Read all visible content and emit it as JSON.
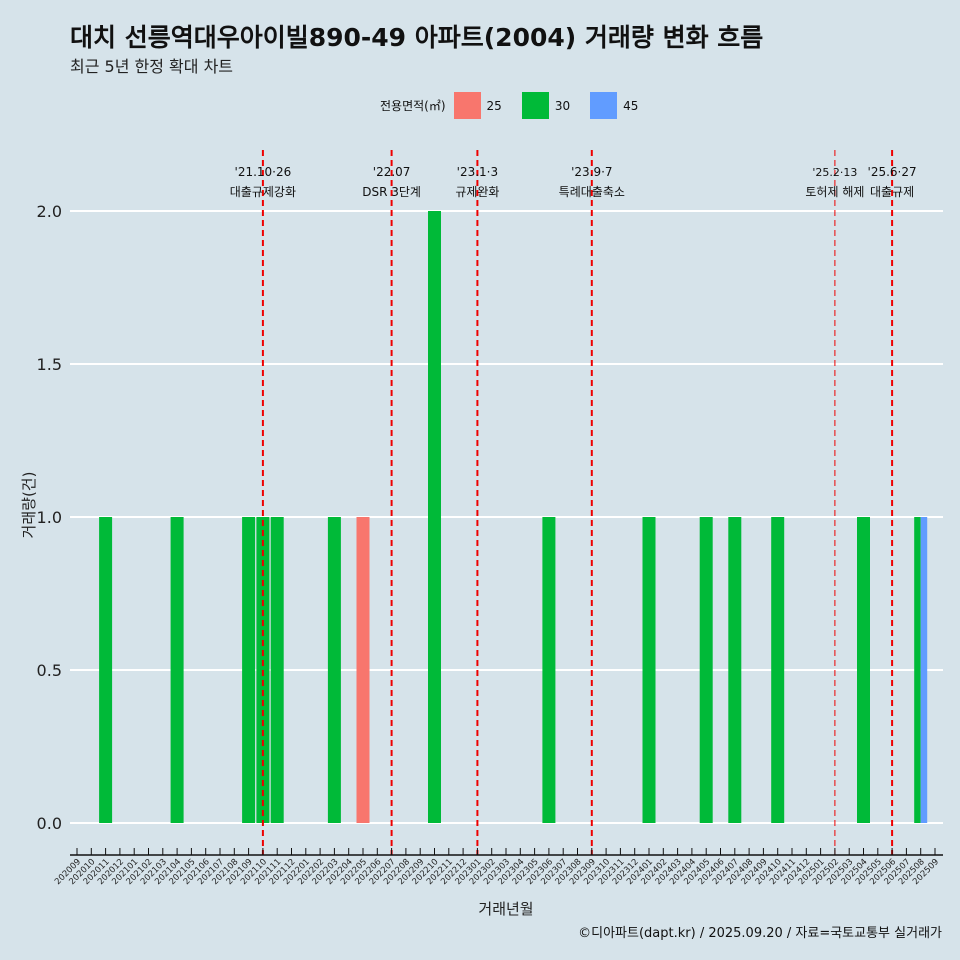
{
  "title": "대치 선릉역대우아이빌890-49 아파트(2004) 거래량 변화 흐름",
  "subtitle": "최근 5년 한정 확대 차트",
  "caption": "©디아파트(dapt.kr) / 2025.09.20 / 자료=국토교통부 실거래가",
  "chart_data": {
    "type": "bar",
    "xlabel": "거래년월",
    "ylabel": "거래량(건)",
    "ylim": [
      -0.15,
      2.2
    ],
    "yticks": [
      "0.0",
      "0.5",
      "1.0",
      "1.5",
      "2.0"
    ],
    "legend": {
      "title": "전용면적(㎡)",
      "position": "top",
      "items": [
        {
          "name": "25",
          "color": "#f8766d"
        },
        {
          "name": "30",
          "color": "#00ba38"
        },
        {
          "name": "45",
          "color": "#619cff"
        }
      ]
    },
    "categories": [
      "202009",
      "202010",
      "202011",
      "202012",
      "202101",
      "202102",
      "202103",
      "202104",
      "202105",
      "202106",
      "202107",
      "202108",
      "202109",
      "202110",
      "202111",
      "202112",
      "202201",
      "202202",
      "202203",
      "202204",
      "202205",
      "202206",
      "202207",
      "202208",
      "202209",
      "202210",
      "202211",
      "202212",
      "202301",
      "202302",
      "202303",
      "202304",
      "202305",
      "202306",
      "202307",
      "202308",
      "202309",
      "202310",
      "202311",
      "202312",
      "202401",
      "202402",
      "202403",
      "202404",
      "202405",
      "202406",
      "202407",
      "202408",
      "202409",
      "202410",
      "202411",
      "202412",
      "202501",
      "202502",
      "202503",
      "202504",
      "202505",
      "202506",
      "202507",
      "202508",
      "202509"
    ],
    "bars": [
      {
        "month": "202011",
        "area": "30",
        "value": 1
      },
      {
        "month": "202104",
        "area": "30",
        "value": 1
      },
      {
        "month": "202109",
        "area": "30",
        "value": 1
      },
      {
        "month": "202110",
        "area": "30",
        "value": 1
      },
      {
        "month": "202111",
        "area": "30",
        "value": 1
      },
      {
        "month": "202203",
        "area": "30",
        "value": 1
      },
      {
        "month": "202205",
        "area": "25",
        "value": 1
      },
      {
        "month": "202210",
        "area": "30",
        "value": 2
      },
      {
        "month": "202306",
        "area": "30",
        "value": 1
      },
      {
        "month": "202401",
        "area": "30",
        "value": 1
      },
      {
        "month": "202405",
        "area": "30",
        "value": 1
      },
      {
        "month": "202407",
        "area": "30",
        "value": 1
      },
      {
        "month": "202410",
        "area": "30",
        "value": 1
      },
      {
        "month": "202504",
        "area": "30",
        "value": 1
      },
      {
        "month": "202508",
        "area": "30",
        "value": 1,
        "dodge": 0
      },
      {
        "month": "202508",
        "area": "45",
        "value": 1,
        "dodge": 1
      }
    ],
    "annotations": [
      {
        "month": "202110",
        "date": "'21.10·26",
        "label": "대출규제강화"
      },
      {
        "month": "202207",
        "date": "'22.07",
        "label": "DSR 3단계"
      },
      {
        "month": "202301",
        "date": "'23.1·3",
        "label": "규제완화"
      },
      {
        "month": "202309",
        "date": "'23.9·7",
        "label": "특례대출축소"
      },
      {
        "month": "202502",
        "date": "'25.2·13",
        "label": "토허제 해제",
        "thin": true
      },
      {
        "month": "202506",
        "date": "'25.6·27",
        "label": "대출규제"
      }
    ]
  }
}
